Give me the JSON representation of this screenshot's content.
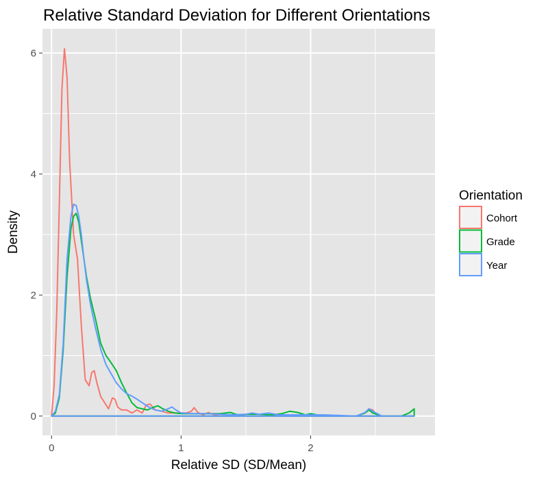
{
  "chart_data": {
    "type": "area",
    "title": "Relative Standard Deviation for Different Orientations",
    "xlabel": "Relative SD (SD/Mean)",
    "ylabel": "Density",
    "xlim": [
      -0.07,
      2.96
    ],
    "ylim": [
      -0.32,
      6.4
    ],
    "xticks": [
      0,
      1,
      2
    ],
    "yticks": [
      0,
      2,
      4,
      6
    ],
    "grid": true,
    "legend": {
      "title": "Orientation",
      "position": "right"
    },
    "colors": {
      "panel": "#e5e5e5",
      "grid": "#ffffff"
    },
    "series": [
      {
        "name": "Cohort",
        "color": "#F8766D",
        "x": [
          0.0,
          0.02,
          0.04,
          0.06,
          0.08,
          0.1,
          0.12,
          0.14,
          0.17,
          0.2,
          0.23,
          0.26,
          0.29,
          0.31,
          0.33,
          0.35,
          0.38,
          0.41,
          0.44,
          0.47,
          0.49,
          0.51,
          0.54,
          0.58,
          0.62,
          0.66,
          0.7,
          0.73,
          0.76,
          0.8,
          0.85,
          0.9,
          0.95,
          1.0,
          1.04,
          1.08,
          1.1,
          1.13,
          1.17,
          1.21,
          1.23,
          1.26,
          1.3,
          1.5,
          2.0,
          2.35,
          2.42,
          2.45,
          2.48,
          2.52,
          2.6,
          2.8
        ],
        "y": [
          0.0,
          0.5,
          1.7,
          3.5,
          5.4,
          6.07,
          5.6,
          4.2,
          3.0,
          2.6,
          1.5,
          0.6,
          0.5,
          0.72,
          0.75,
          0.55,
          0.32,
          0.22,
          0.12,
          0.3,
          0.28,
          0.15,
          0.1,
          0.1,
          0.05,
          0.1,
          0.05,
          0.18,
          0.2,
          0.1,
          0.08,
          0.05,
          0.05,
          0.05,
          0.05,
          0.08,
          0.14,
          0.06,
          0.02,
          0.06,
          0.04,
          0.02,
          0.0,
          0.0,
          0.0,
          0.0,
          0.05,
          0.12,
          0.1,
          0.0,
          0.0,
          0.0
        ]
      },
      {
        "name": "Grade",
        "color": "#00BA38",
        "x": [
          0.0,
          0.03,
          0.06,
          0.09,
          0.12,
          0.15,
          0.17,
          0.19,
          0.21,
          0.23,
          0.25,
          0.27,
          0.3,
          0.34,
          0.38,
          0.42,
          0.46,
          0.5,
          0.54,
          0.58,
          0.62,
          0.66,
          0.7,
          0.74,
          0.78,
          0.82,
          0.86,
          0.9,
          0.95,
          1.0,
          1.1,
          1.2,
          1.3,
          1.38,
          1.42,
          1.46,
          1.5,
          1.6,
          1.7,
          1.78,
          1.84,
          1.9,
          1.96,
          2.0,
          2.05,
          2.2,
          2.35,
          2.42,
          2.45,
          2.48,
          2.55,
          2.7,
          2.76,
          2.8
        ],
        "y": [
          0.0,
          0.05,
          0.3,
          1.1,
          2.3,
          3.1,
          3.3,
          3.35,
          3.2,
          2.9,
          2.6,
          2.3,
          1.95,
          1.6,
          1.2,
          1.0,
          0.88,
          0.75,
          0.55,
          0.38,
          0.22,
          0.14,
          0.12,
          0.1,
          0.14,
          0.17,
          0.12,
          0.08,
          0.05,
          0.04,
          0.04,
          0.04,
          0.04,
          0.06,
          0.03,
          0.02,
          0.03,
          0.03,
          0.02,
          0.04,
          0.08,
          0.06,
          0.02,
          0.04,
          0.02,
          0.0,
          0.0,
          0.05,
          0.1,
          0.05,
          0.0,
          0.0,
          0.05,
          0.12
        ]
      },
      {
        "name": "Year",
        "color": "#619CFF",
        "x": [
          0.0,
          0.03,
          0.06,
          0.09,
          0.12,
          0.15,
          0.17,
          0.19,
          0.21,
          0.23,
          0.25,
          0.27,
          0.3,
          0.34,
          0.38,
          0.42,
          0.46,
          0.5,
          0.54,
          0.58,
          0.62,
          0.66,
          0.7,
          0.75,
          0.8,
          0.85,
          0.9,
          0.93,
          0.96,
          1.0,
          1.1,
          1.2,
          1.3,
          1.4,
          1.5,
          1.55,
          1.6,
          1.68,
          1.75,
          1.9,
          2.1,
          2.35,
          2.42,
          2.45,
          2.48,
          2.55,
          2.8
        ],
        "y": [
          0.0,
          0.08,
          0.35,
          1.2,
          2.6,
          3.3,
          3.5,
          3.48,
          3.3,
          3.0,
          2.6,
          2.25,
          1.85,
          1.45,
          1.1,
          0.85,
          0.7,
          0.55,
          0.45,
          0.37,
          0.33,
          0.28,
          0.22,
          0.15,
          0.1,
          0.08,
          0.12,
          0.15,
          0.1,
          0.05,
          0.04,
          0.04,
          0.03,
          0.02,
          0.03,
          0.05,
          0.03,
          0.05,
          0.02,
          0.02,
          0.02,
          0.0,
          0.06,
          0.12,
          0.08,
          0.0,
          0.0
        ]
      }
    ]
  }
}
